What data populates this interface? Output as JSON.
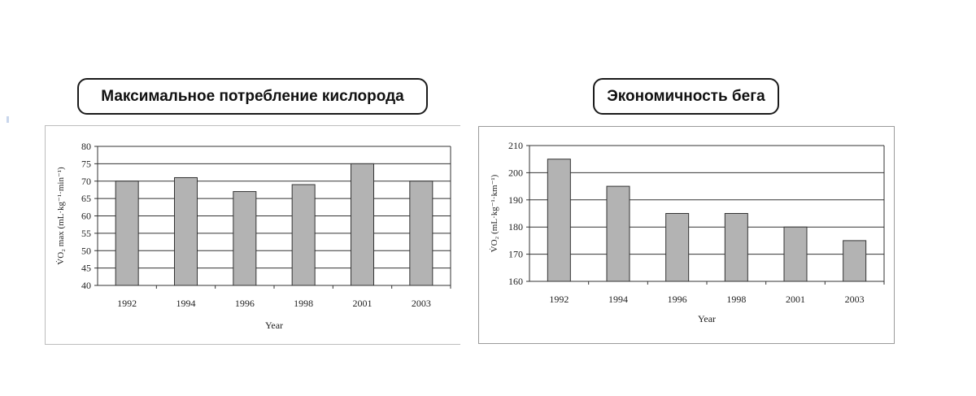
{
  "titles": {
    "left": "Максимальное потребление кислорода",
    "right": "Экономичность бега"
  },
  "colors": {
    "bar_fill": "#b3b3b3",
    "bar_stroke": "#333333",
    "grid": "#333333"
  },
  "chart_data": [
    {
      "type": "bar",
      "categories": [
        "1992",
        "1994",
        "1996",
        "1998",
        "2001",
        "2003"
      ],
      "values": [
        70,
        71,
        67,
        69,
        75,
        70
      ],
      "xlabel": "Year",
      "ylabel": "V̇O₂ max (mL·kg⁻¹·min⁻¹)",
      "ylim": [
        40,
        80
      ],
      "yticks": [
        40,
        45,
        50,
        55,
        60,
        65,
        70,
        75,
        80
      ],
      "grid": true
    },
    {
      "type": "bar",
      "categories": [
        "1992",
        "1994",
        "1996",
        "1998",
        "2001",
        "2003"
      ],
      "values": [
        205,
        195,
        185,
        185,
        180,
        175
      ],
      "xlabel": "Year",
      "ylabel": "V̇O₂ (mL·kg⁻¹·km⁻¹)",
      "ylim": [
        160,
        210
      ],
      "yticks": [
        160,
        170,
        180,
        190,
        200,
        210
      ],
      "grid": true
    }
  ]
}
